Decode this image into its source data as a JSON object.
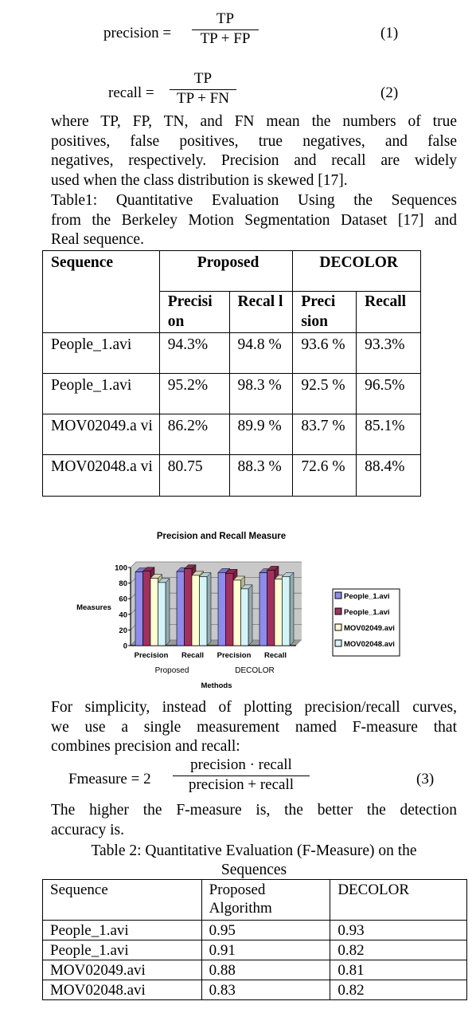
{
  "eq1": {
    "lhs": "precision =",
    "num": "TP",
    "den": "TP + FP",
    "num_label": "(1)"
  },
  "eq2": {
    "lhs": "recall =",
    "num": "TP",
    "den": "TP + FN",
    "num_label": "(2)"
  },
  "para1": [
    "where TP, FP, TN, and FN mean the numbers of true",
    "positives, false positives, true negatives, and false",
    "negatives, respectively. Precision and recall are widely",
    "used when the class distribution is skewed [17]."
  ],
  "table1_caption": [
    "Table1: Quantitative Evaluation Using the Sequences",
    "from the Berkeley Motion Segmentation Dataset [17] and",
    "Real sequence."
  ],
  "table1": {
    "h_sequence": "Sequence",
    "h_proposed": "Proposed",
    "h_decolor": "DECOLOR",
    "sub": {
      "p_prec": "Precisi on",
      "p_rec": "Recal l",
      "d_prec": "Preci sion",
      "d_rec": "Recall"
    },
    "rows": [
      {
        "seq": "People_1.avi",
        "pp": "94.3%",
        "pr": "94.8 %",
        "dp": "93.6 %",
        "dr": "93.3%"
      },
      {
        "seq": "People_1.avi",
        "pp": "95.2%",
        "pr": "98.3 %",
        "dp": "92.5 %",
        "dr": "96.5%"
      },
      {
        "seq": "MOV02049.a vi",
        "pp": "86.2%",
        "pr": "89.9 %",
        "dp": "83.7 %",
        "dr": "85.1%"
      },
      {
        "seq": "MOV02048.a vi",
        "pp": "80.75",
        "pr": "88.3 %",
        "dp": "72.6 %",
        "dr": "88.4%"
      }
    ]
  },
  "chart_data": {
    "type": "bar",
    "title": "Precision and Recall Measure",
    "ylabel": "Measures",
    "xlabel": "Methods",
    "ylim": [
      0,
      100
    ],
    "yticks": [
      "0",
      "20",
      "40",
      "60",
      "80",
      "100"
    ],
    "categories": [
      "Precision",
      "Recall",
      "Precision",
      "Recall"
    ],
    "groups": [
      "Proposed",
      "DECOLOR"
    ],
    "series": [
      {
        "name": "People_1.avi",
        "color": "#8b8bf0",
        "values": [
          94.3,
          94.8,
          93.6,
          93.3
        ]
      },
      {
        "name": "People_1.avi",
        "color": "#a3305c",
        "values": [
          95.2,
          98.3,
          92.5,
          96.5
        ]
      },
      {
        "name": "MOV02049.avi",
        "color": "#ffffd0",
        "values": [
          86.2,
          89.9,
          83.7,
          85.1
        ]
      },
      {
        "name": "MOV02048.avi",
        "color": "#d2f4f8",
        "values": [
          80.75,
          88.3,
          72.6,
          88.4
        ]
      }
    ],
    "grid": true,
    "legend": "right"
  },
  "para2": [
    "For simplicity, instead of plotting precision/recall curves,",
    "we use a single measurement named F-measure that",
    "combines precision and recall:"
  ],
  "eq3": {
    "lhs": "Fmeasure = 2",
    "num": "precision · recall",
    "den": "precision + recall",
    "num_label": "(3)"
  },
  "para3": [
    "The higher the F-measure is, the better the detection",
    "accuracy is."
  ],
  "table2_caption": [
    "Table 2: Quantitative Evaluation (F-Measure) on the",
    "Sequences"
  ],
  "table2": {
    "h_sequence": "Sequence",
    "h_proposed": "Proposed Algorithm",
    "h_decolor": "DECOLOR",
    "rows": [
      {
        "seq": "People_1.avi",
        "p": "0.95",
        "d": "0.93"
      },
      {
        "seq": "People_1.avi",
        "p": "0.91",
        "d": "0.82"
      },
      {
        "seq": "MOV02049.avi",
        "p": "0.88",
        "d": "0.81"
      },
      {
        "seq": "MOV02048.avi",
        "p": "0.83",
        "d": "0.82"
      }
    ]
  }
}
